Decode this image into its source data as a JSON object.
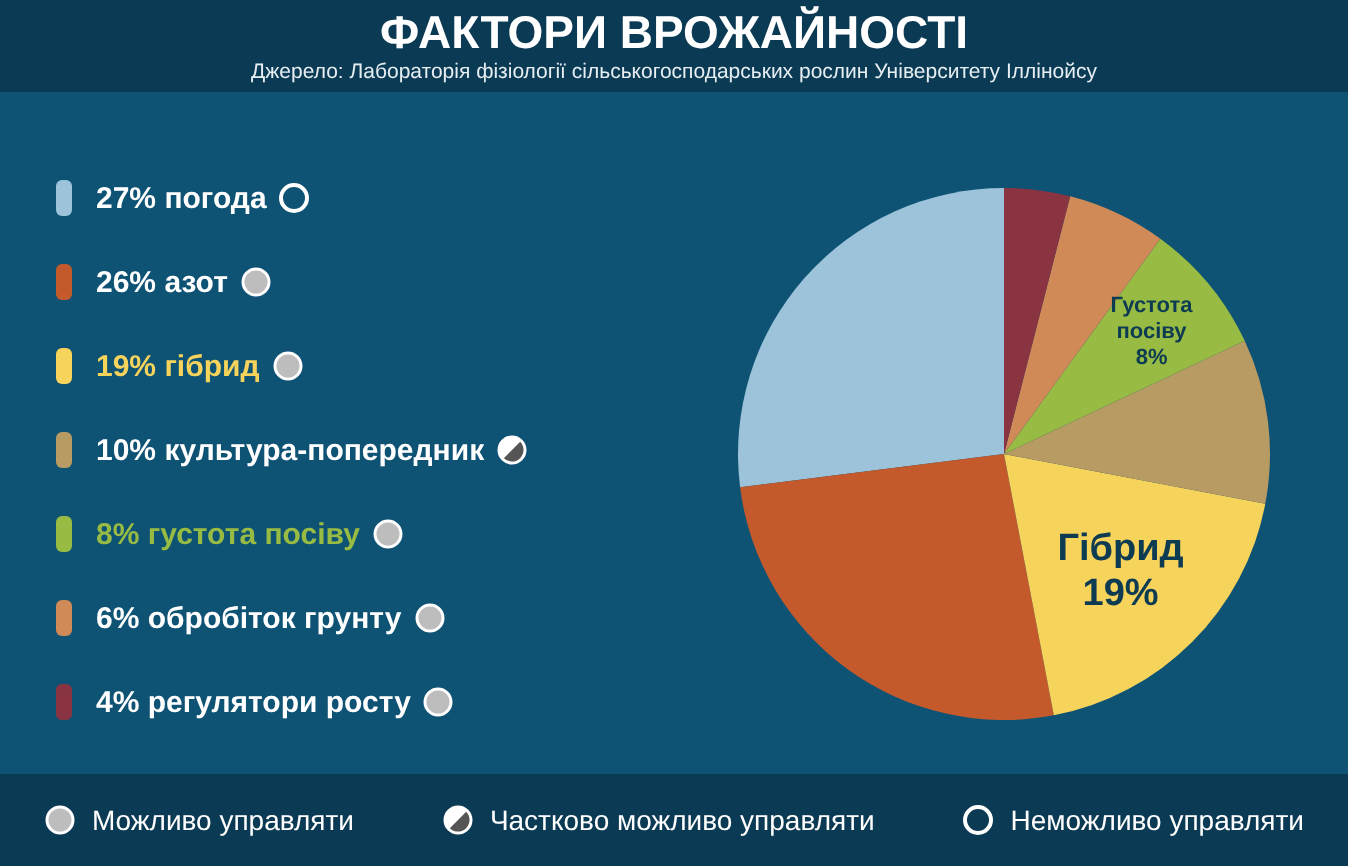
{
  "chart_data": {
    "type": "pie",
    "title": "ФАКТОРИ ВРОЖАЙНОСТІ",
    "subtitle": "Джерело: Лабораторія фізіології сільськогосподарських рослин Університету Іллінойсу",
    "categories": [
      "27% погода",
      "26% азот",
      "19% гібрид",
      "10% культура-попередник",
      "8% густота посіву",
      "6% обробіток грунту",
      "4% регулятори росту"
    ],
    "values": [
      27,
      26,
      19,
      10,
      8,
      6,
      4
    ],
    "colors": [
      "#9cc3d9",
      "#c45a2c",
      "#f6d35b",
      "#b89b62",
      "#98bb43",
      "#d08a58",
      "#8b3441"
    ],
    "value_labels": [
      null,
      null,
      "Гібрид\n19%",
      null,
      "Густота\nпосіву\n8%",
      null,
      null
    ],
    "legend": "left",
    "annotations": [
      "Можливо управляти",
      "Частково можливо управляти",
      "Неможливо управляти"
    ]
  }
}
